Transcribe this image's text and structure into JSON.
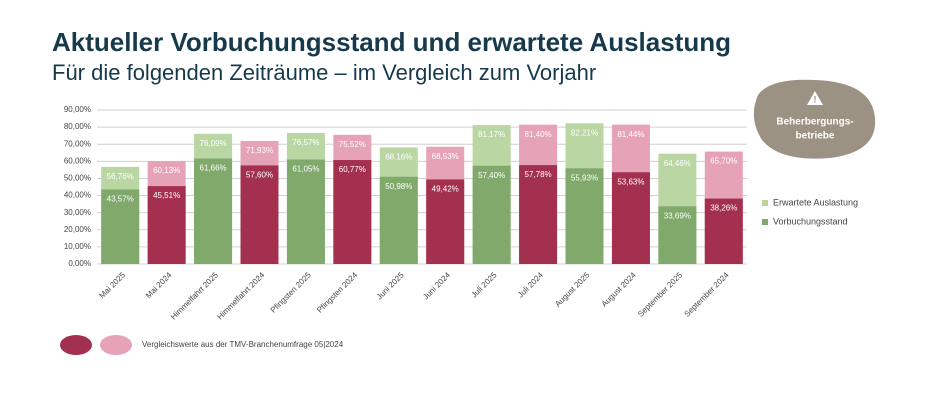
{
  "chart_data": {
    "type": "bar",
    "title": "Aktueller Vorbuchungsstand und erwartete Auslastung",
    "subtitle": "Für die folgenden Zeiträume – im Vergleich zum Vorjahr",
    "categories": [
      "Mai 2025",
      "Mai 2024",
      "Himmelfahrt 2025",
      "Himmelfahrt 2024",
      "Pfingsten 2025",
      "Pfingsten 2024",
      "Juni 2025",
      "Juni 2024",
      "Juli 2025",
      "Juli 2024",
      "August 2025",
      "August 2024",
      "September 2025",
      "September 2024"
    ],
    "series": [
      {
        "name": "Erwartete Auslastung",
        "color": "#b9d6a3",
        "colors": [
          "#b9d6a3",
          "#e6a3b8",
          "#b9d6a3",
          "#e6a3b8",
          "#b9d6a3",
          "#e6a3b8",
          "#b9d6a3",
          "#e6a3b8",
          "#b9d6a3",
          "#e6a3b8",
          "#b9d6a3",
          "#e6a3b8",
          "#b9d6a3",
          "#e6a3b8"
        ],
        "values": [
          56.76,
          60.13,
          76.09,
          71.93,
          76.57,
          75.52,
          68.16,
          68.53,
          81.17,
          81.4,
          82.21,
          81.44,
          64.46,
          65.7
        ],
        "value_labels": [
          "56,76%",
          "60,13%",
          "76,09%",
          "71,93%",
          "76,57%",
          "75,52%",
          "68,16%",
          "68,53%",
          "81,17%",
          "81,40%",
          "82,21%",
          "81,44%",
          "64,46%",
          "65,70%"
        ]
      },
      {
        "name": "Vorbuchungsstand",
        "color": "#80a96b",
        "colors": [
          "#80a96b",
          "#a3304f",
          "#80a96b",
          "#a3304f",
          "#80a96b",
          "#a3304f",
          "#80a96b",
          "#a3304f",
          "#80a96b",
          "#a3304f",
          "#80a96b",
          "#a3304f",
          "#80a96b",
          "#a3304f"
        ],
        "values": [
          43.57,
          45.51,
          61.66,
          57.6,
          61.05,
          60.77,
          50.98,
          49.42,
          57.4,
          57.78,
          55.93,
          53.63,
          33.69,
          38.26
        ],
        "value_labels": [
          "43,57%",
          "45,51%",
          "61,66%",
          "57,60%",
          "61,05%",
          "60,77%",
          "50,98%",
          "49,42%",
          "57,40%",
          "57,78%",
          "55,93%",
          "53,63%",
          "33,69%",
          "38,26%"
        ]
      }
    ],
    "ylim": [
      0,
      90
    ],
    "yticks": [
      {
        "value": 0,
        "label": "0,00%"
      },
      {
        "value": 10,
        "label": "10,00%"
      },
      {
        "value": 20,
        "label": "20,00%"
      },
      {
        "value": 30,
        "label": "30,00%"
      },
      {
        "value": 40,
        "label": "40,00%"
      },
      {
        "value": 50,
        "label": "50,00%"
      },
      {
        "value": 60,
        "label": "60,00%"
      },
      {
        "value": 70,
        "label": "70,00%"
      },
      {
        "value": 80,
        "label": "80,00%"
      },
      {
        "value": 90,
        "label": "90,00%"
      }
    ],
    "grid": true,
    "legend": "right",
    "badge": {
      "lines": [
        "Beherbergungs-",
        "betriebe"
      ]
    },
    "comparison_note": {
      "text": "Vergleichswerte aus der TMV-Branchenumfrage 05|2024",
      "colors": [
        "#a3304f",
        "#e6a3b8"
      ]
    }
  }
}
